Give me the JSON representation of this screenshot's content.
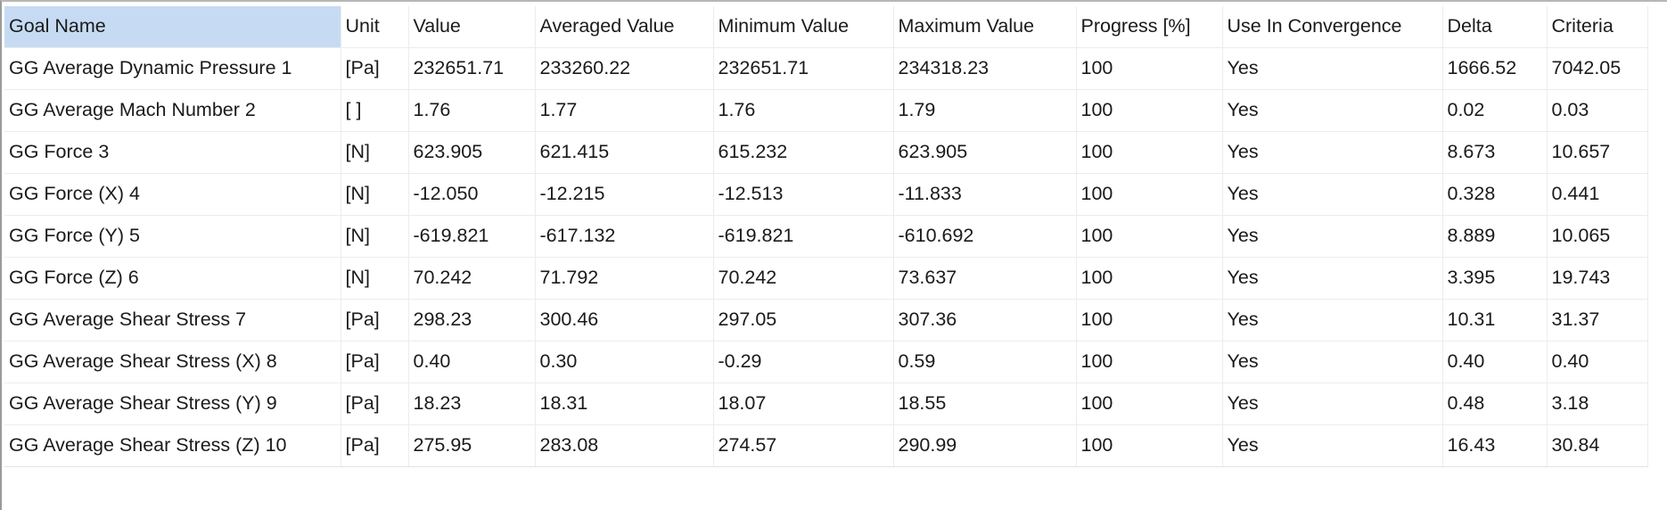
{
  "table": {
    "columns": [
      "Goal Name",
      "Unit",
      "Value",
      "Averaged Value",
      "Minimum Value",
      "Maximum Value",
      "Progress [%]",
      "Use In Convergence",
      "Delta",
      "Criteria"
    ],
    "rows": [
      [
        "GG Average Dynamic Pressure 1",
        "[Pa]",
        "232651.71",
        "233260.22",
        "232651.71",
        "234318.23",
        "100",
        "Yes",
        "1666.52",
        "7042.05"
      ],
      [
        "GG Average Mach Number 2",
        "[ ]",
        "1.76",
        "1.77",
        "1.76",
        "1.79",
        "100",
        "Yes",
        "0.02",
        "0.03"
      ],
      [
        "GG Force 3",
        "[N]",
        "623.905",
        "621.415",
        "615.232",
        "623.905",
        "100",
        "Yes",
        "8.673",
        "10.657"
      ],
      [
        "GG Force (X) 4",
        "[N]",
        "-12.050",
        "-12.215",
        "-12.513",
        "-11.833",
        "100",
        "Yes",
        "0.328",
        "0.441"
      ],
      [
        "GG Force (Y) 5",
        "[N]",
        "-619.821",
        "-617.132",
        "-619.821",
        "-610.692",
        "100",
        "Yes",
        "8.889",
        "10.065"
      ],
      [
        "GG Force (Z) 6",
        "[N]",
        "70.242",
        "71.792",
        "70.242",
        "73.637",
        "100",
        "Yes",
        "3.395",
        "19.743"
      ],
      [
        "GG Average Shear Stress 7",
        "[Pa]",
        "298.23",
        "300.46",
        "297.05",
        "307.36",
        "100",
        "Yes",
        "10.31",
        "31.37"
      ],
      [
        "GG Average Shear Stress (X) 8",
        "[Pa]",
        "0.40",
        "0.30",
        "-0.29",
        "0.59",
        "100",
        "Yes",
        "0.40",
        "0.40"
      ],
      [
        "GG Average Shear Stress (Y) 9",
        "[Pa]",
        "18.23",
        "18.31",
        "18.07",
        "18.55",
        "100",
        "Yes",
        "0.48",
        "3.18"
      ],
      [
        "GG Average Shear Stress (Z) 10",
        "[Pa]",
        "275.95",
        "283.08",
        "274.57",
        "290.99",
        "100",
        "Yes",
        "16.43",
        "30.84"
      ]
    ]
  },
  "colors": {
    "selected_header": "#c6dbf3",
    "grid_line": "#ececec",
    "text": "#1a1a1a"
  }
}
